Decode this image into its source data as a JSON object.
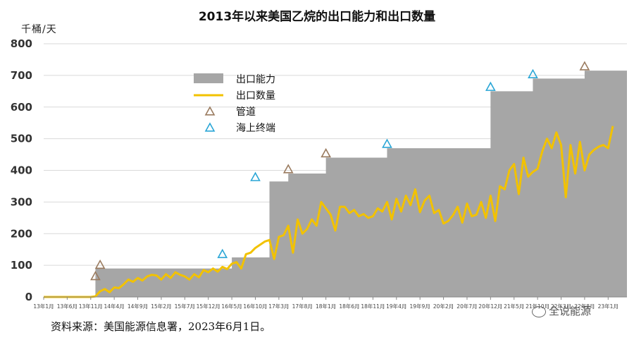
{
  "chart_data": {
    "type": "area",
    "title": "2013年以来美国乙烷的出口能力和出口数量",
    "ylabel": "千桶/天",
    "ylim": [
      0,
      800
    ],
    "yticks": [
      0,
      100,
      200,
      300,
      400,
      500,
      600,
      700,
      800
    ],
    "grid": true,
    "legend_position": "top-left",
    "x_ticks": [
      "13年1月",
      "13年6月",
      "13年11月",
      "14年4月",
      "14年9月",
      "15年2月",
      "15年7月",
      "15年12月",
      "16年5月",
      "16年10月",
      "17年3月",
      "17年8月",
      "18年1月",
      "18年6月",
      "18年11月",
      "19年4月",
      "19年9月",
      "20年2月",
      "20年7月",
      "20年12月",
      "21年5月",
      "21年10月",
      "22年3月",
      "22年8月",
      "23年1月"
    ],
    "x_range_months": [
      0,
      124
    ],
    "series": [
      {
        "name": "出口能力",
        "kind": "step-area",
        "color": "#a6a6a6",
        "points": [
          [
            0,
            0
          ],
          [
            11,
            0
          ],
          [
            11,
            90
          ],
          [
            40,
            90
          ],
          [
            40,
            125
          ],
          [
            48,
            125
          ],
          [
            48,
            365
          ],
          [
            52,
            365
          ],
          [
            52,
            390
          ],
          [
            60,
            390
          ],
          [
            60,
            440
          ],
          [
            73,
            440
          ],
          [
            73,
            470
          ],
          [
            95,
            470
          ],
          [
            95,
            650
          ],
          [
            104,
            650
          ],
          [
            104,
            690
          ],
          [
            115,
            690
          ],
          [
            115,
            715
          ],
          [
            124,
            715
          ]
        ]
      },
      {
        "name": "出口数量",
        "kind": "line",
        "color": "#f2c200",
        "values": [
          0,
          0,
          0,
          0,
          0,
          0,
          0,
          0,
          0,
          0,
          0,
          2,
          18,
          25,
          15,
          30,
          28,
          40,
          55,
          48,
          60,
          52,
          65,
          70,
          68,
          55,
          72,
          60,
          78,
          70,
          65,
          55,
          72,
          62,
          85,
          78,
          90,
          80,
          95,
          88,
          105,
          110,
          90,
          135,
          140,
          155,
          165,
          175,
          180,
          120,
          190,
          195,
          225,
          140,
          245,
          200,
          215,
          245,
          225,
          300,
          280,
          260,
          210,
          285,
          285,
          265,
          275,
          255,
          262,
          250,
          255,
          280,
          270,
          300,
          245,
          310,
          270,
          320,
          290,
          340,
          268,
          305,
          320,
          265,
          275,
          232,
          240,
          258,
          285,
          235,
          295,
          255,
          260,
          300,
          250,
          320,
          240,
          350,
          340,
          400,
          420,
          325,
          440,
          380,
          395,
          405,
          460,
          500,
          470,
          520,
          480,
          315,
          480,
          390,
          490,
          400,
          450,
          465,
          475,
          480,
          470,
          540
        ]
      }
    ],
    "markers": [
      {
        "name": "管道",
        "color": "#9a7b5f",
        "points": [
          [
            11,
            52
          ],
          [
            12,
            88
          ],
          [
            52,
            390
          ],
          [
            60,
            440
          ],
          [
            115,
            715
          ]
        ]
      },
      {
        "name": "海上终端",
        "color": "#2aa6d6",
        "points": [
          [
            38,
            122
          ],
          [
            45,
            365
          ],
          [
            73,
            470
          ],
          [
            95,
            650
          ],
          [
            104,
            690
          ]
        ]
      }
    ],
    "source": "资料来源：美国能源信息署，2023年6月1日。",
    "watermark": "全说能源"
  }
}
